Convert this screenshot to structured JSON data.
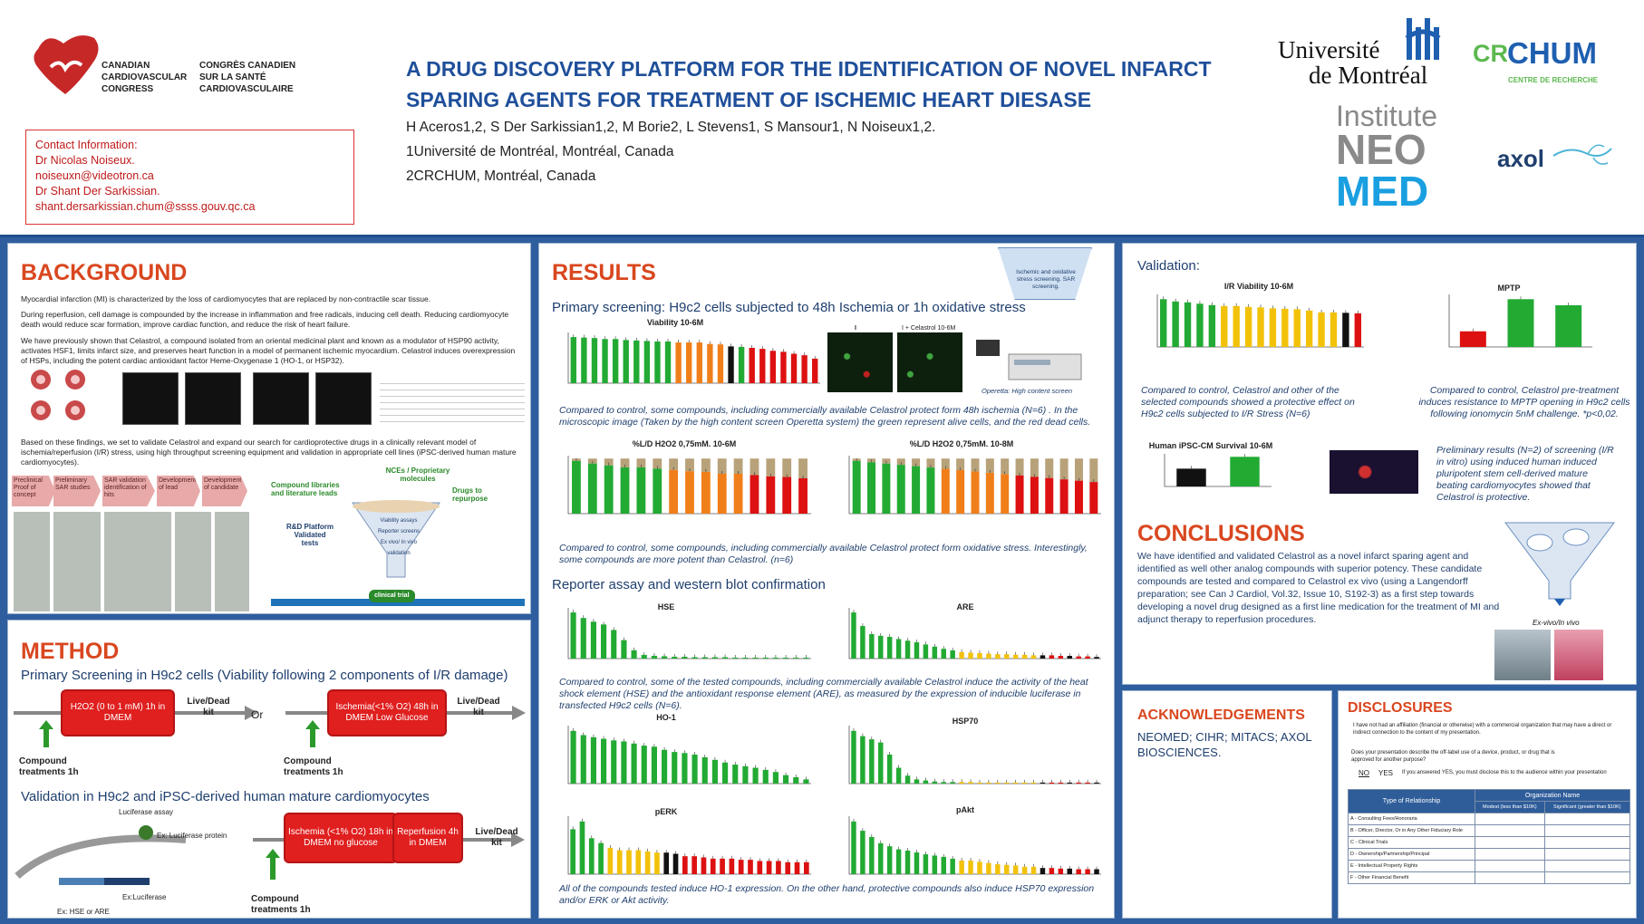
{
  "header": {
    "title_line1": "A DRUG DISCOVERY PLATFORM FOR THE IDENTIFICATION OF NOVEL INFARCT",
    "title_line2": "SPARING AGENTS FOR TREATMENT OF ISCHEMIC HEART DIESASE",
    "authors": "H Aceros1,2, S Der Sarkissian1,2, M Borie2, L Stevens1, S Mansour1, N Noiseux1,2.",
    "affil1": "1Université de Montréal, Montréal, Canada",
    "affil2": "2CRCHUM, Montréal, Canada",
    "ccc_en": "CANADIAN\nCARDIOVASCULAR\nCONGRESS",
    "ccc_fr": "CONGRÈS CANADIEN\nSUR LA SANTÉ\nCARDIOVASCULAIRE",
    "contact": [
      "Contact Information:",
      "Dr Nicolas Noiseux.",
      "noiseuxn@videotron.ca",
      "Dr Shant Der Sarkissian.",
      "shant.dersarkissian.chum@ssss.gouv.qc.ca"
    ],
    "udem_line1": "Université",
    "udem_line2": "de Montréal",
    "crchum_cr": "CR",
    "crchum_chum": "CHUM",
    "crchum_sub": "CENTRE DE RECHERCHE",
    "neomed_1": "Institute",
    "neomed_2": "NEO",
    "neomed_3": "MED",
    "axol": "axol"
  },
  "background": {
    "title": "BACKGROUND",
    "p1": "Myocardial infarction (MI) is characterized by the loss of cardiomyocytes that are replaced by non-contractile scar tissue.",
    "p2": "During reperfusion, cell damage is compounded by the increase in inflammation and free radicals, inducing cell death. Reducing cardiomyocyte death would reduce scar formation, improve cardiac function, and reduce the risk of heart failure.",
    "p3": "We have previously shown that Celastrol, a compound isolated from an oriental medicinal plant and known as a modulator of HSP90 activity, activates HSF1, limits infarct size, and preserves heart function in a model of permanent ischemic myocardium. Celastrol induces overexpression of HSPs, including the potent cardiac antioxidant factor Heme-Oxygenase 1 (HO-1, or HSP32).",
    "p4": "Based on these findings, we set to validate Celastrol and expand our search for cardioprotective drugs in a clinically relevant model of ischemia/reperfusion (I/R) stress, using high throughput screening equipment and validation in appropriate cell lines (iPSC-derived human mature cardiomyocytes).",
    "flow_steps": [
      "Preclinical Proof of concept",
      "Preliminary SAR studies",
      "SAR validation identification of hits",
      "Development of lead",
      "Development of candidate"
    ],
    "compound_libraries": "Compound libraries and literature leads",
    "nces": "NCEs / Proprietary molecules",
    "drugs_repurpose": "Drugs to repurpose",
    "rd_platform": "R&D Platform Validated tests",
    "clinical_trial": "clinical trial",
    "funnel_items": [
      "Viability assays",
      "Reporter screens",
      "Ex vivo/ In vivo validation"
    ]
  },
  "method": {
    "title": "METHOD",
    "primary": "Primary Screening in H9c2 cells (Viability  following  2 components of I/R damage)",
    "box1": "H2O2 (0 to 1 mM) 1h in DMEM",
    "box2": "Ischemia(<1% O2) 48h in DMEM Low Glucose",
    "or": "Or",
    "livedead": "Live/Dead kit",
    "compound_treat": "Compound treatments 1h",
    "validation": "Validation in H9c2 and iPSC-derived human mature cardiomyocytes",
    "box3": "Ischemia (<1% O2) 18h in DMEM no glucose",
    "box4": "Reperfusion 4h in DMEM",
    "luciferase_assay": "Luciferase assay",
    "luc_protein": "Ex: Luciferase protein",
    "ex_luc": "Ex:Luciferase",
    "ex_hse": "Ex: HSE or ARE"
  },
  "results": {
    "title": "RESULTS",
    "primary": "Primary screening: H9c2 cells subjected to 48h Ischemia or 1h oxidative stress",
    "cap1": "Compared to control, some compounds, including commercially available Celastrol protect form 48h ischemia (N=6) . In the microscopic image (Taken by the high content screen Operetta system) the green represent alive cells, and the red dead cells.",
    "cap2": "Compared to control, some compounds, including commercially available Celastrol protect form oxidative stress. Interestingly, some compounds are more potent than Celastrol. (n=6)",
    "reporter": "Reporter assay and western blot confirmation",
    "cap3": "Compared to control, some  of the tested compounds, including commercially available Celastrol induce the  activity of the heat shock element  (HSE) and the antioxidant response element (ARE), as measured by the expression of inducible luciferase  in transfected H9c2 cells (N=6).",
    "cap4": "All of the compounds tested induce HO-1 expression. On the other hand, protective compounds also induce HSP70 expression and/or ERK or Akt activity.",
    "operetta": "Operetta: High content screen",
    "micro_l": "I",
    "micro_r": "I + Celastrol 10-6M",
    "funnel_badge": "Ischemic and oxidative stress screening. SAR screening."
  },
  "validation": {
    "title": "Validation:",
    "cap1": "Compared to control, Celastrol and other of the selected compounds showed a protective effect on H9c2 cells subjected to I/R Stress  (N=6)",
    "cap2": "Compared to control, Celastrol pre-treatment induces resistance to MPTP opening in H9c2 cells following ionomycin 5nM challenge. *p<0,02.",
    "cap3": "Preliminary results (N=2) of screening (I/R in vitro) using induced human induced pluripotent stem cell-derived mature beating cardiomyocytes showed that Celastrol is protective.",
    "exvivo": "Ex-vivo/In vivo"
  },
  "conclusions": {
    "title": "CONCLUSIONS",
    "text": "We have identified and validated Celastrol as a novel infarct sparing agent and identified as well other analog compounds with superior potency. These candidate compounds are tested and compared to Celastrol ex vivo (using a Langendorff preparation; see Can J Cardiol, Vol.32, Issue 10, S192-3) as a first step towards developing a novel drug designed as a first line medication for the treatment of MI and adjunct therapy to reperfusion procedures."
  },
  "ack": {
    "title": "ACKNOWLEDGEMENTS",
    "text": "NEOMED; CIHR; MITACS; AXOL BIOSCIENCES."
  },
  "disclosures": {
    "title": "DISCLOSURES",
    "q1": "I have not had an affiliation (financial or otherwise) with a commercial organization that may have a direct or indirect connection to the content of my presentation.",
    "q2": "Does your presentation describe the off-label use of a device, product, or drug that is approved for another purpose?",
    "no": "NO",
    "yes": "YES",
    "note": "If you answered YES, you must disclose this to the audience within your presentation",
    "th_type": "Type of Relationship",
    "th_org": "Organization Name",
    "th_modest": "Modest (less than $10K)",
    "th_sig": "Significant (greater than $10K)",
    "rows": [
      "A - Consulting Fees/Honoraria",
      "B - Officer, Director, Or in Any Other Fiduciary Role",
      "C - Clinical Trials",
      "D - Ownership/Partnership/Principal",
      "E - Intellectual Property Rights",
      "F - Other Financial Benefit"
    ]
  },
  "colors": {
    "title_blue": "#1f4f9a",
    "section_orange": "#d9471f",
    "bar_green": "#22aa33",
    "bar_orange": "#f07f1a",
    "bar_red": "#dd1111",
    "bar_yellow": "#f2c20a",
    "bar_black": "#111111"
  },
  "chart_data": [
    {
      "type": "bar",
      "title": "Viability 10-6M",
      "values": [
        94,
        93,
        92,
        90,
        90,
        88,
        87,
        86,
        85,
        85,
        83,
        83,
        83,
        80,
        79,
        75,
        74,
        72,
        70,
        66,
        64,
        60,
        57,
        50
      ],
      "colors": [
        "g",
        "g",
        "g",
        "g",
        "g",
        "g",
        "g",
        "g",
        "g",
        "g",
        "o",
        "o",
        "o",
        "o",
        "o",
        "k",
        "g",
        "r",
        "r",
        "r",
        "r",
        "r",
        "r",
        "r"
      ]
    },
    {
      "type": "bar",
      "title": "%L/D H2O2 0,75mM. 10-6M",
      "values": [
        82,
        78,
        75,
        72,
        72,
        70,
        68,
        66,
        65,
        62,
        62,
        60,
        58,
        57,
        55
      ],
      "colors": [
        "g",
        "g",
        "g",
        "g",
        "g",
        "g",
        "o",
        "o",
        "o",
        "o",
        "o",
        "r",
        "r",
        "r",
        "r"
      ],
      "stacked_top": "tan"
    },
    {
      "type": "bar",
      "title": "%L/D H2O2 0,75mM. 10-8M",
      "values": [
        80,
        78,
        76,
        74,
        72,
        70,
        68,
        66,
        64,
        62,
        60,
        58,
        56,
        54,
        52,
        50,
        48
      ],
      "colors": [
        "g",
        "g",
        "g",
        "g",
        "g",
        "g",
        "o",
        "o",
        "o",
        "o",
        "o",
        "r",
        "r",
        "r",
        "r",
        "r",
        "r"
      ],
      "stacked_top": "tan"
    },
    {
      "type": "bar",
      "title": "HSE",
      "values": [
        100,
        88,
        80,
        74,
        62,
        40,
        18,
        8,
        6,
        5,
        4,
        4,
        3,
        3,
        3,
        3,
        2,
        2,
        2,
        2,
        2,
        2,
        2,
        2
      ],
      "colors": "g"
    },
    {
      "type": "bar",
      "title": "ARE",
      "values": [
        85,
        60,
        45,
        42,
        40,
        36,
        33,
        30,
        26,
        22,
        18,
        15,
        12,
        11,
        10,
        9,
        8,
        8,
        7,
        7,
        6,
        6,
        6,
        5,
        5,
        4,
        4,
        3
      ],
      "colors": "mix"
    },
    {
      "type": "bar",
      "title": "HO-1",
      "values": [
        100,
        92,
        88,
        85,
        82,
        80,
        76,
        72,
        70,
        64,
        60,
        58,
        55,
        50,
        45,
        40,
        36,
        33,
        30,
        26,
        22,
        16,
        12,
        8
      ],
      "colors": "g"
    },
    {
      "type": "bar",
      "title": "HSP70",
      "values": [
        100,
        90,
        84,
        78,
        55,
        30,
        15,
        8,
        6,
        4,
        3,
        3,
        3,
        3,
        2,
        2,
        2,
        2,
        2,
        2,
        2,
        2,
        2,
        2,
        2,
        2,
        2,
        2
      ],
      "colors": "mix"
    },
    {
      "type": "bar",
      "title": "pERK",
      "values": [
        75,
        88,
        60,
        52,
        44,
        40,
        40,
        40,
        38,
        36,
        36,
        34,
        30,
        30,
        28,
        26,
        26,
        26,
        24,
        24,
        22,
        22,
        22,
        20,
        20,
        20
      ],
      "colors": "mixerk"
    },
    {
      "type": "bar",
      "title": "pAkt",
      "values": [
        85,
        70,
        60,
        50,
        45,
        40,
        38,
        35,
        32,
        30,
        28,
        25,
        22,
        22,
        20,
        18,
        16,
        15,
        14,
        12,
        12,
        10,
        10,
        9,
        9,
        8,
        8,
        8
      ],
      "colors": "mix"
    },
    {
      "type": "bar",
      "title": "I/R Viability 10-6M",
      "values": [
        105,
        100,
        98,
        95,
        92,
        90,
        90,
        88,
        87,
        85,
        84,
        83,
        80,
        76,
        76,
        75,
        74
      ],
      "colors": [
        "g",
        "g",
        "g",
        "g",
        "g",
        "y",
        "y",
        "y",
        "y",
        "y",
        "y",
        "y",
        "y",
        "y",
        "y",
        "k",
        "r"
      ]
    },
    {
      "type": "bar",
      "title": "MPTP",
      "values": [
        18,
        55,
        48
      ],
      "colors": [
        "r",
        "g",
        "g"
      ]
    },
    {
      "type": "bar",
      "title": "Human iPSC-CM Survival 10-6M",
      "values": [
        42,
        70
      ],
      "colors": [
        "k",
        "g"
      ]
    }
  ]
}
